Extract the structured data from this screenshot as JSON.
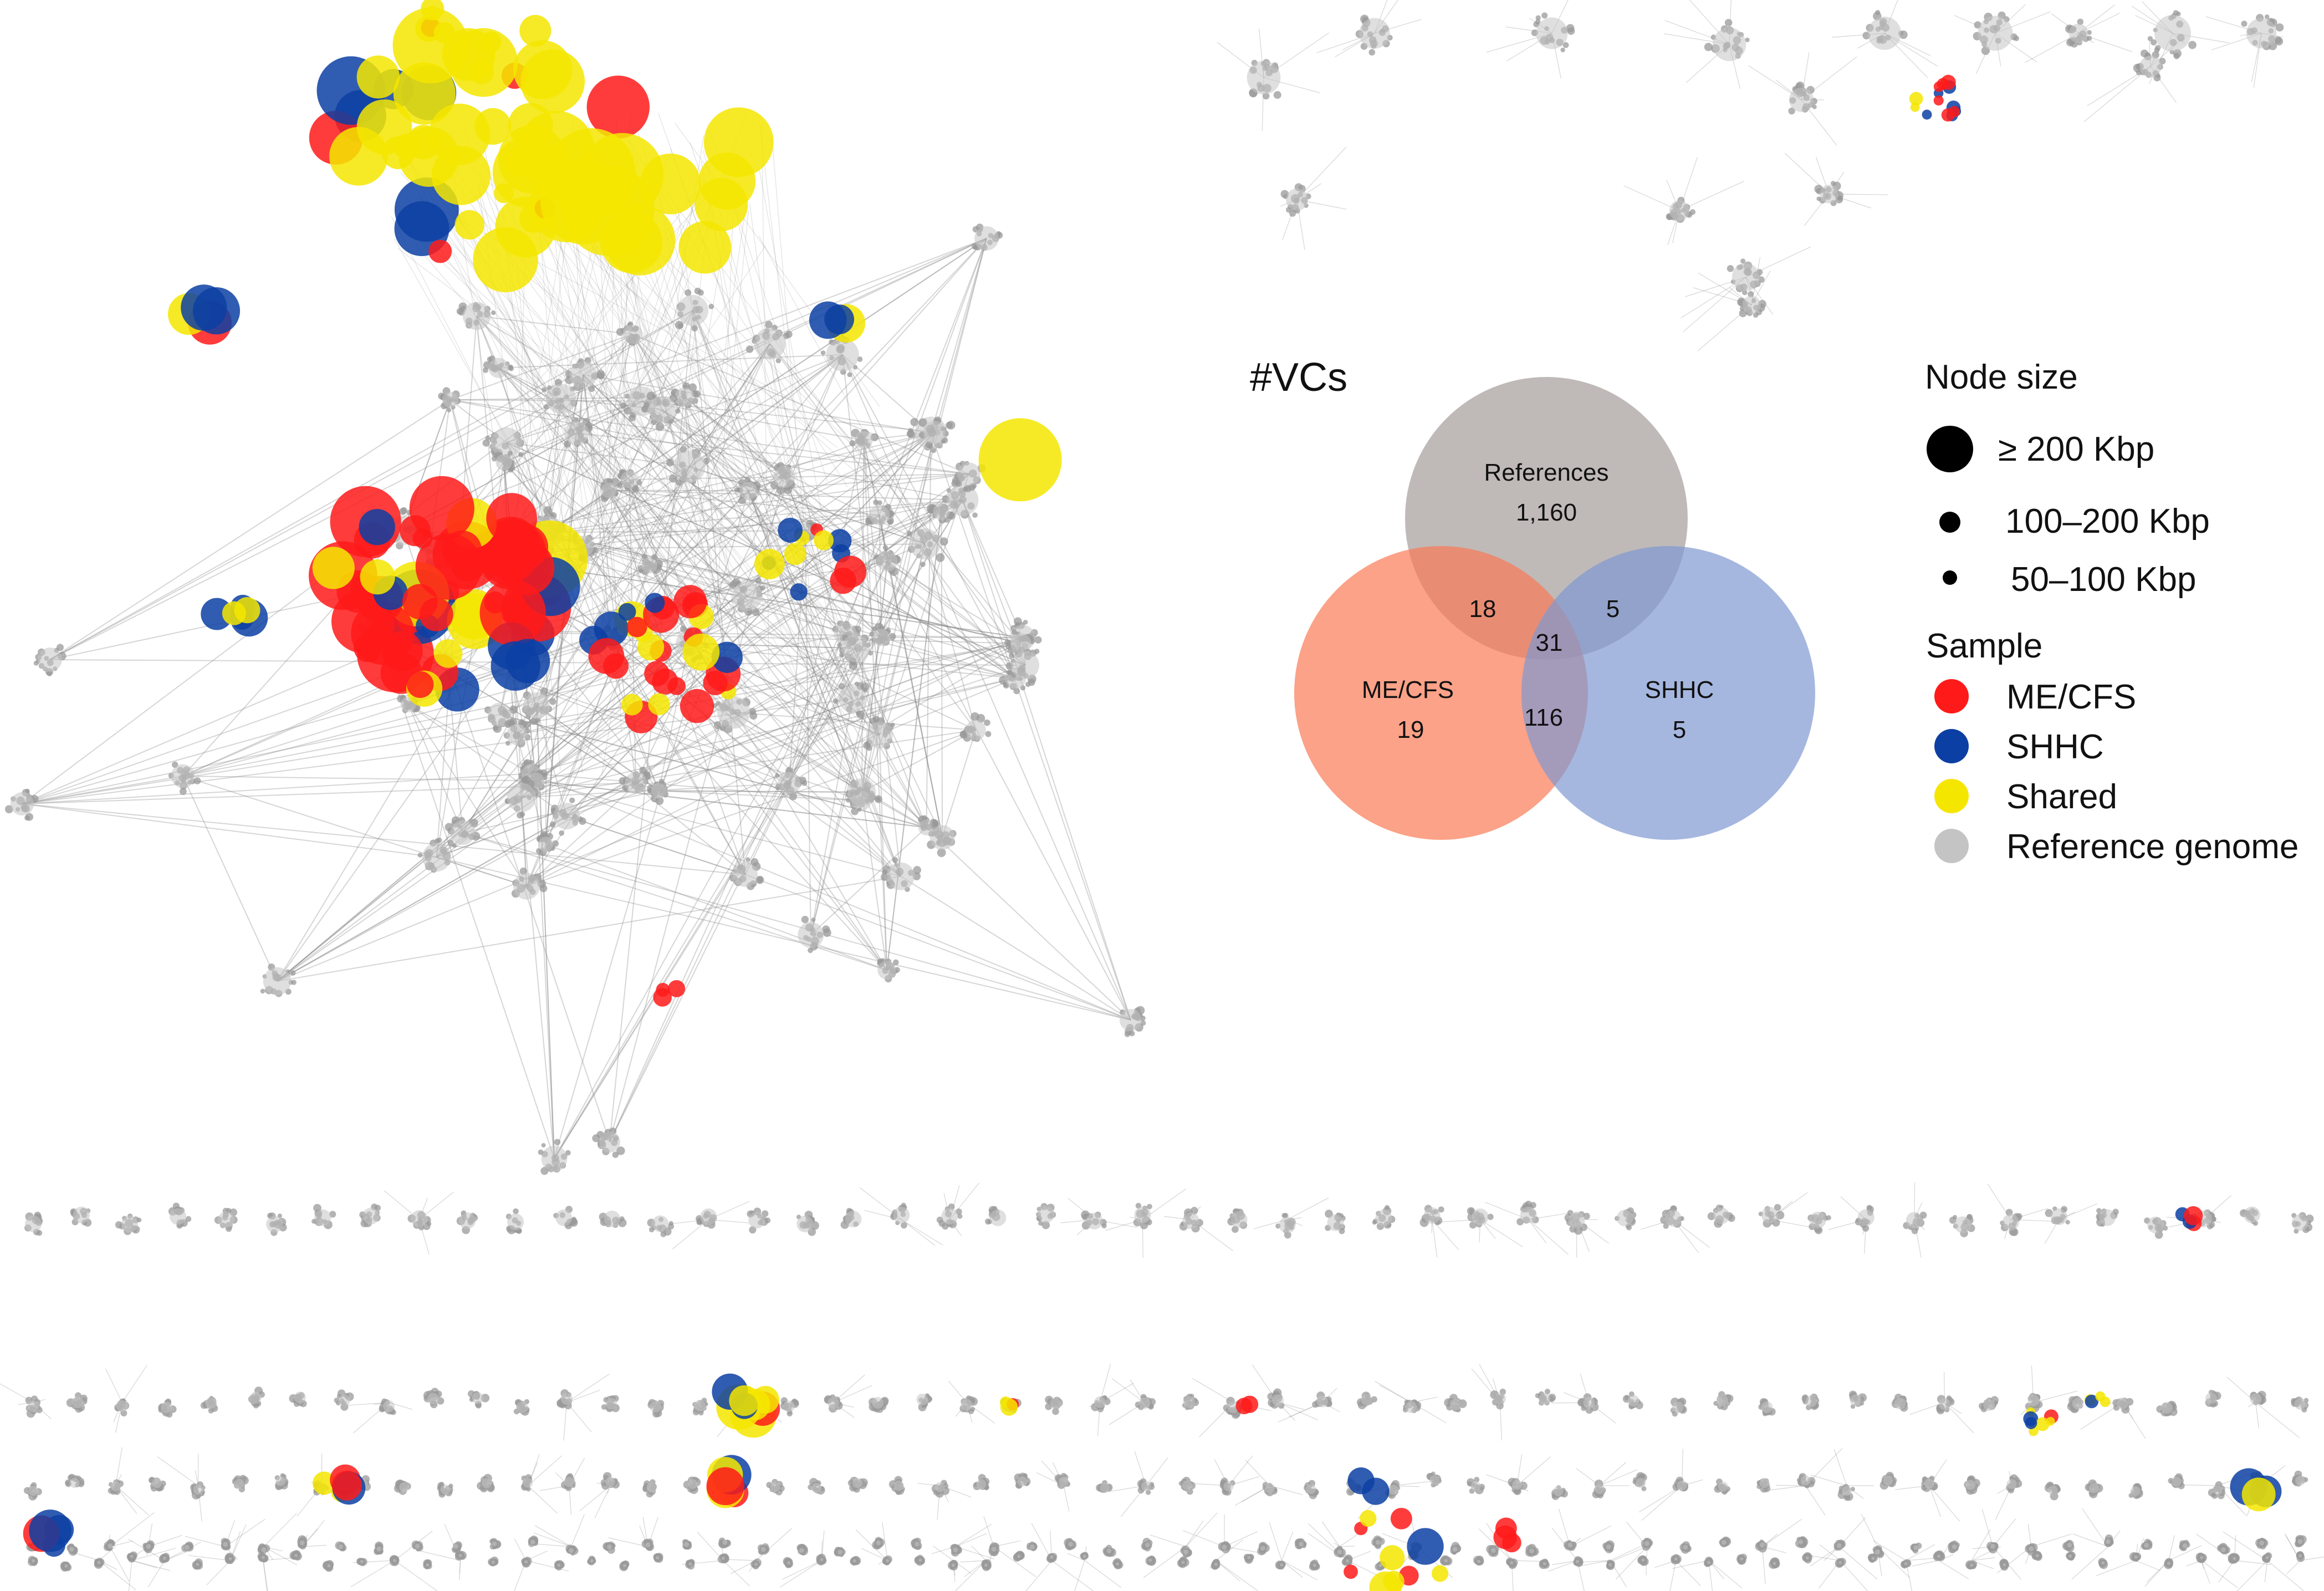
{
  "venn": {
    "title": "#VCs",
    "sets": [
      {
        "name": "References",
        "value": "1,160",
        "color": "#b8b3b0"
      },
      {
        "name": "ME/CFS",
        "value": "19",
        "color": "#fa9070"
      },
      {
        "name": "SHHC",
        "value": "5",
        "color": "#9aacd8"
      }
    ],
    "overlaps": {
      "ref_mecfs": "18",
      "ref_shhc": "5",
      "all_three": "31",
      "mecfs_shhc": "116"
    }
  },
  "legend": {
    "node_size_title": "Node size",
    "sizes": [
      "≥ 200 Kbp",
      "100–200 Kbp",
      "50–100 Kbp"
    ],
    "sample_title": "Sample",
    "samples": [
      {
        "label": "ME/CFS",
        "color": "#ff1a1a"
      },
      {
        "label": "SHHC",
        "color": "#0c3fa3"
      },
      {
        "label": "Shared",
        "color": "#f5e600"
      },
      {
        "label": "Reference genome",
        "color": "#c4c4c4"
      }
    ]
  }
}
